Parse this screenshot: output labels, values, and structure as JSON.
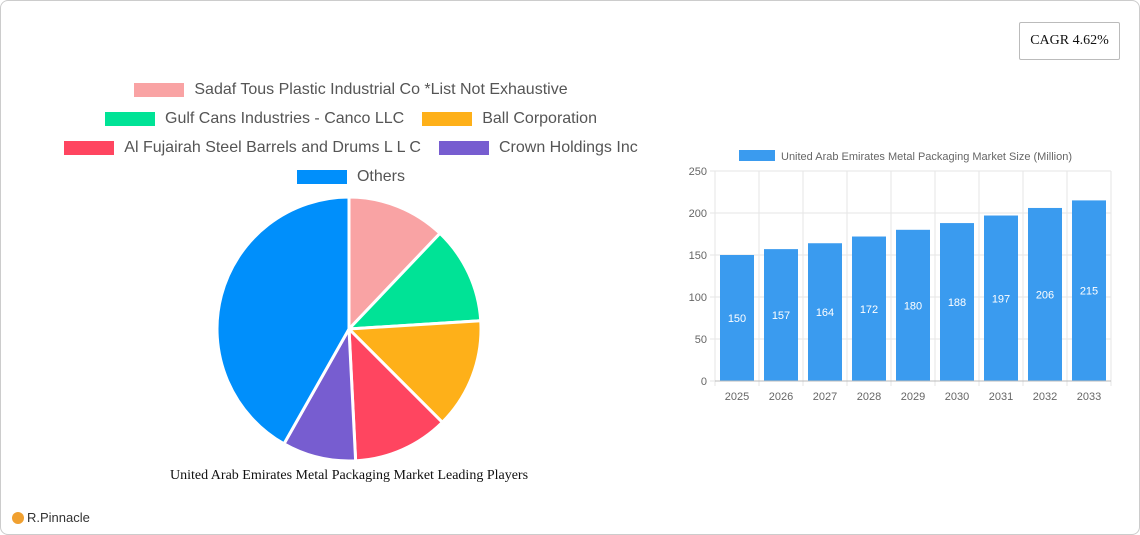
{
  "cagr": "CAGR 4.62%",
  "logo": "R.Pinnacle",
  "chart_data": [
    {
      "type": "pie",
      "title": "United Arab Emirates Metal Packaging Market Leading Players",
      "legend_placement": "top",
      "slices": [
        {
          "name": "Sadaf Tous Plastic Industrial Co *List Not Exhaustive",
          "value": 12.1,
          "color": "#f9a3a4"
        },
        {
          "name": "Gulf Cans Industries - Canco LLC",
          "value": 11.9,
          "color": "#00e396"
        },
        {
          "name": "Ball Corporation",
          "value": 13.5,
          "color": "#feb019"
        },
        {
          "name": "Al Fujairah Steel Barrels and Drums L L C",
          "value": 11.7,
          "color": "#ff4560"
        },
        {
          "name": "Crown Holdings Inc",
          "value": 9.0,
          "color": "#775dd0"
        },
        {
          "name": "Others",
          "value": 41.8,
          "color": "#008ffb"
        }
      ]
    },
    {
      "type": "bar",
      "legend_placement": "top",
      "series": [
        {
          "name": "United Arab Emirates Metal Packaging Market Size (Million)",
          "color": "#3a9bef",
          "values": [
            150,
            157,
            164,
            172,
            180,
            188,
            197,
            206,
            215
          ]
        }
      ],
      "categories": [
        "2025",
        "2026",
        "2027",
        "2028",
        "2029",
        "2030",
        "2031",
        "2032",
        "2033"
      ],
      "ylim": [
        0,
        250
      ],
      "yticks": [
        0,
        50,
        100,
        150,
        200,
        250
      ],
      "grid": true
    }
  ]
}
